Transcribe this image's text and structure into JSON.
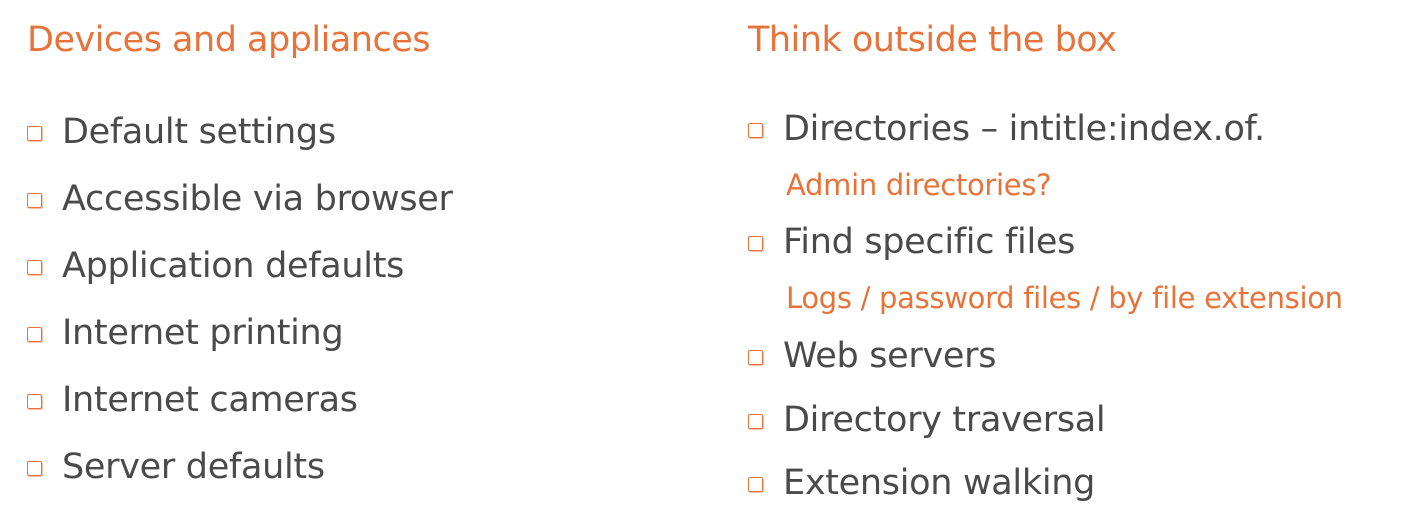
{
  "colors": {
    "accent": "#e8733a",
    "text": "#4a4a4a",
    "background": "#ffffff"
  },
  "left": {
    "title": "Devices and appliances",
    "items": [
      "Default settings",
      "Accessible via browser",
      "Application defaults",
      "Internet printing",
      "Internet cameras",
      "Server defaults"
    ]
  },
  "right": {
    "title": "Think outside the box",
    "items": [
      {
        "label": "Directories – intitle:index.of.",
        "sub": "Admin directories?"
      },
      {
        "label": "Find specific files",
        "sub": "Logs / password files / by file extension"
      },
      {
        "label": "Web servers"
      },
      {
        "label": "Directory traversal"
      },
      {
        "label": "Extension walking"
      }
    ]
  }
}
